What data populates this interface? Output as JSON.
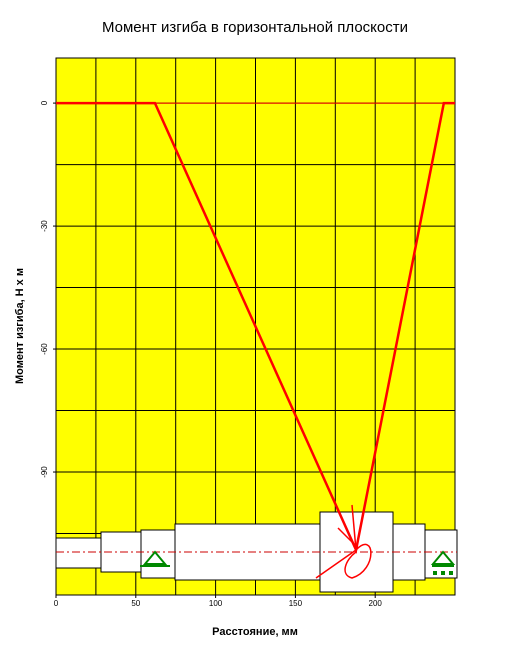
{
  "chart_data": {
    "type": "line",
    "title": "Момент изгиба в горизонтальной плоскости",
    "x_label": "Расстояние, мм",
    "y_label": "Момент изгиба, Н х м",
    "x": [
      0,
      62,
      188,
      243,
      250
    ],
    "values": [
      0,
      0,
      -109,
      0,
      0
    ],
    "color": "#ff0000",
    "background": "#ffff00",
    "grid": true,
    "xlim": [
      0,
      250
    ],
    "xticks": [
      0,
      50,
      100,
      150,
      200
    ],
    "ylim": [
      -120,
      11
    ],
    "yticks": [
      -90,
      -60,
      -30,
      0
    ]
  }
}
